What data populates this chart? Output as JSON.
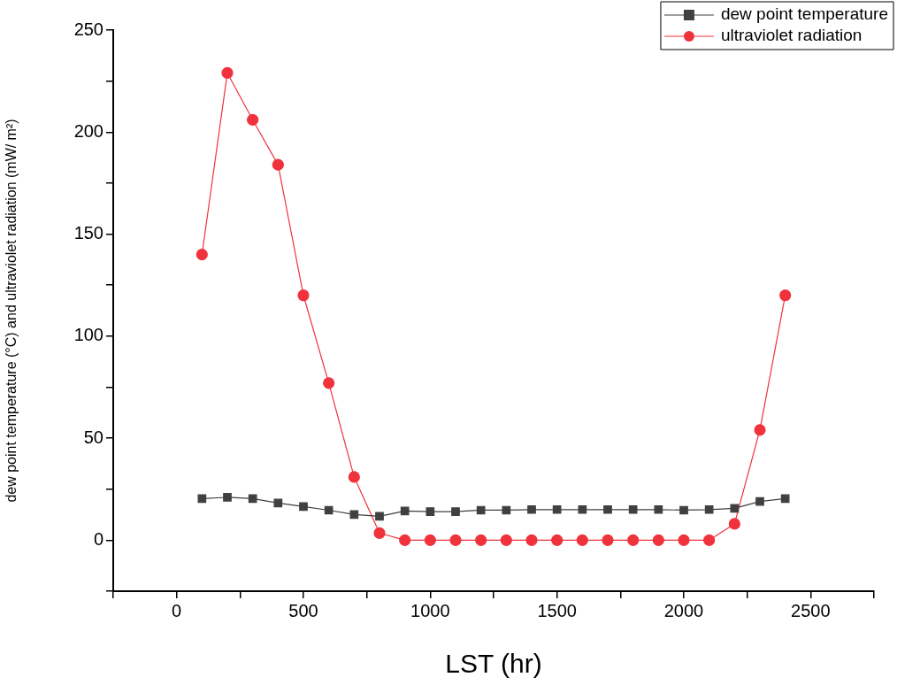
{
  "chart_data": {
    "type": "line",
    "xlabel": "LST (hr)",
    "ylabel": "dew point temperature (°C) and ultraviolet radiation (mW/ m²)",
    "x": [
      100,
      200,
      300,
      400,
      500,
      600,
      700,
      800,
      900,
      1000,
      1100,
      1200,
      1300,
      1400,
      1500,
      1600,
      1700,
      1800,
      1900,
      2000,
      2100,
      2200,
      2300,
      2400
    ],
    "series": [
      {
        "name": "dew point temperature",
        "color": "#404040",
        "marker": "square",
        "values": [
          20.4,
          21,
          20.4,
          18.2,
          16.5,
          14.7,
          12.6,
          11.7,
          14.3,
          14,
          14,
          14.7,
          14.7,
          15,
          15,
          15,
          15,
          15,
          15,
          14.7,
          15,
          15.6,
          19,
          20.4
        ]
      },
      {
        "name": "ultraviolet radiation",
        "color": "#f0323c",
        "marker": "circle",
        "values": [
          140,
          229,
          206,
          184,
          120,
          77,
          31,
          3.5,
          0,
          0,
          0,
          0,
          0,
          0,
          0,
          0,
          0,
          0,
          0,
          0,
          0,
          8,
          54,
          120
        ]
      }
    ],
    "xlim": [
      -250,
      2750
    ],
    "xticks": [
      {
        "value": -250,
        "label": null
      },
      0,
      {
        "value": 250,
        "label": null
      },
      500,
      {
        "value": 750,
        "label": null
      },
      1000,
      {
        "value": 1250,
        "label": null
      },
      1500,
      {
        "value": 1750,
        "label": null
      },
      2000,
      {
        "value": 2250,
        "label": null
      },
      2500,
      {
        "value": 2750,
        "label": null
      }
    ],
    "ylim": [
      -25,
      250
    ],
    "yticks": [
      {
        "value": -25,
        "label": null
      },
      0,
      {
        "value": 25,
        "label": null
      },
      50,
      {
        "value": 75,
        "label": null
      },
      100,
      {
        "value": 125,
        "label": null
      },
      150,
      {
        "value": 175,
        "label": null
      },
      200,
      {
        "value": 225,
        "label": null
      },
      250
    ],
    "grid": false,
    "legend": "top right",
    "line_style": "solid"
  }
}
